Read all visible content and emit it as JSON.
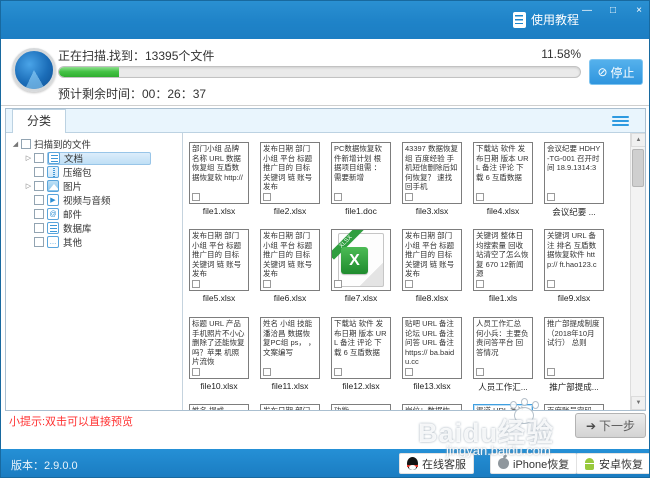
{
  "window": {
    "controls": {
      "minimize": "—",
      "maximize": "□",
      "close": "×"
    },
    "tutorial_label": "使用教程"
  },
  "scan": {
    "status": "正在扫描...",
    "found_text": "找到：13395个文件",
    "percent_label": "11.58%",
    "percent_value": 11.58,
    "stop_icon": "⊘",
    "stop_label": "停止",
    "eta": "预计剩余时间：00：26：37"
  },
  "sidebar": {
    "tab_label": "分类",
    "root_label": "扫描到的文件",
    "items": [
      {
        "label": "文档",
        "icon": "document-icon",
        "style": "doc",
        "expandable": true,
        "selected": true
      },
      {
        "label": "压缩包",
        "icon": "archive-icon",
        "style": "zip",
        "expandable": false,
        "selected": false
      },
      {
        "label": "图片",
        "icon": "image-icon",
        "style": "img",
        "expandable": true,
        "selected": false
      },
      {
        "label": "视频与音频",
        "icon": "media-icon",
        "style": "media",
        "glyph": "▶",
        "expandable": false,
        "selected": false
      },
      {
        "label": "邮件",
        "icon": "mail-icon",
        "style": "mail",
        "glyph": "@",
        "expandable": false,
        "selected": false
      },
      {
        "label": "数据库",
        "icon": "database-icon",
        "style": "doc",
        "expandable": false,
        "selected": false
      },
      {
        "label": "其他",
        "icon": "other-icon",
        "style": "other",
        "glyph": "…",
        "expandable": false,
        "selected": false
      }
    ]
  },
  "grid": {
    "cards": [
      {
        "preview": "部门小组 品牌名称 URL 数据恢复组 互盾数据恢复软 http://",
        "filename": "file1.xlsx"
      },
      {
        "preview": "发布日期 部门小组 平台 标题 推广目的 目标关键词 链 账号 发布",
        "filename": "file2.xlsx"
      },
      {
        "preview": "PC数据恢复软件新增计划 根据项目组需 ：需要新增",
        "filename": "file1.doc"
      },
      {
        "preview": "43397 数据恢复组 百度经验 手机短信删除后如何恢复？ 速找回手机",
        "filename": "file3.xlsx"
      },
      {
        "preview": "下载站 软件 发布日期 版本 URL 备注 评论 下载 6 互盾数据",
        "filename": "file4.xlsx"
      },
      {
        "preview": "会议纪要 HDHY-TG-001 召开时间 18.9.1314:3",
        "filename": "会议纪要 ..."
      },
      {
        "preview": "发布日期 部门小组 平台 标题 推广目的 目标关键词 链 账号 发布",
        "filename": "file5.xlsx"
      },
      {
        "preview": "发布日期 部门小组 平台 标题 推广目的 目标关键词 链 账号 发布",
        "filename": "file6.xlsx"
      },
      {
        "icon": "xlsx-file-icon",
        "icon_text": "X",
        "ribbon": "XLSX",
        "filename": "file7.xlsx"
      },
      {
        "preview": "发布日期 部门小组 平台 标题 推广目的 目标关键词 链 账号 发布",
        "filename": "file8.xlsx"
      },
      {
        "preview": "关键词 整体日均搜索量 回收站清空了怎么恢复 670 12新闻源",
        "filename": "file1.xls"
      },
      {
        "preview": "关键词 URL 备注 排名 互盾数据恢复软件 http:// ft.hao123.c",
        "filename": "file9.xlsx"
      },
      {
        "preview": "标题 URL 产品 手机照片不小心删除了还能恢复吗？苹果 机照片流恢",
        "filename": "file10.xlsx"
      },
      {
        "preview": "姓名 小组 技能 潘洽昌 数据恢复PC组 ps， ，文案编写",
        "filename": "file11.xlsx"
      },
      {
        "preview": "下载站 软件 发布日期 版本 URL 备注 评论 下载 6 互盾数据",
        "filename": "file12.xlsx"
      },
      {
        "preview": "贴吧 URL 备注 论坛 URL 备注 问答 URL 备注 https:// ba.baidu.cc",
        "filename": "file13.xlsx"
      },
      {
        "preview": "人员工作汇总 何小兵：主要负责问答平台 回答情况",
        "filename": "人员工作汇..."
      },
      {
        "preview": "推广部提成制度 （2018年10月试行） 总则",
        "filename": "推广部提成..."
      }
    ],
    "partial_row": [
      {
        "preview": "姓名 提成",
        "selected": false
      },
      {
        "preview": "发布日期 部门",
        "selected": false
      },
      {
        "preview": "功能",
        "selected": false
      },
      {
        "preview": "岗位：数据恢",
        "selected": false
      },
      {
        "preview": "渠道 URL 备注",
        "selected": true
      },
      {
        "preview": "百度账号密码",
        "selected": false
      }
    ]
  },
  "footer": {
    "tip": "小提示:双击可以直接预览",
    "next_label": "下一步",
    "next_arrow": "➔",
    "version": "版本：2.9.0.0",
    "buttons": [
      {
        "label": "在线客服",
        "icon": "qq-icon"
      },
      {
        "label": "iPhone恢复",
        "icon": "apple-icon"
      },
      {
        "label": "安卓恢复",
        "icon": "android-icon"
      }
    ]
  },
  "watermark": {
    "logo": "Baidu经验",
    "url": "jingyan.baidu.com"
  },
  "colors": {
    "titlebar_blue": "#1f83c8",
    "accent_blue": "#2e9ae0",
    "progress_green": "#3cb93c",
    "stop_button_blue": "#3aa0e8",
    "tab_strip_blue": "#e9f5fd",
    "selected_border_blue": "#3f9fe0",
    "tip_red": "#ff3333",
    "footer_blue": "#1a7bc0"
  }
}
